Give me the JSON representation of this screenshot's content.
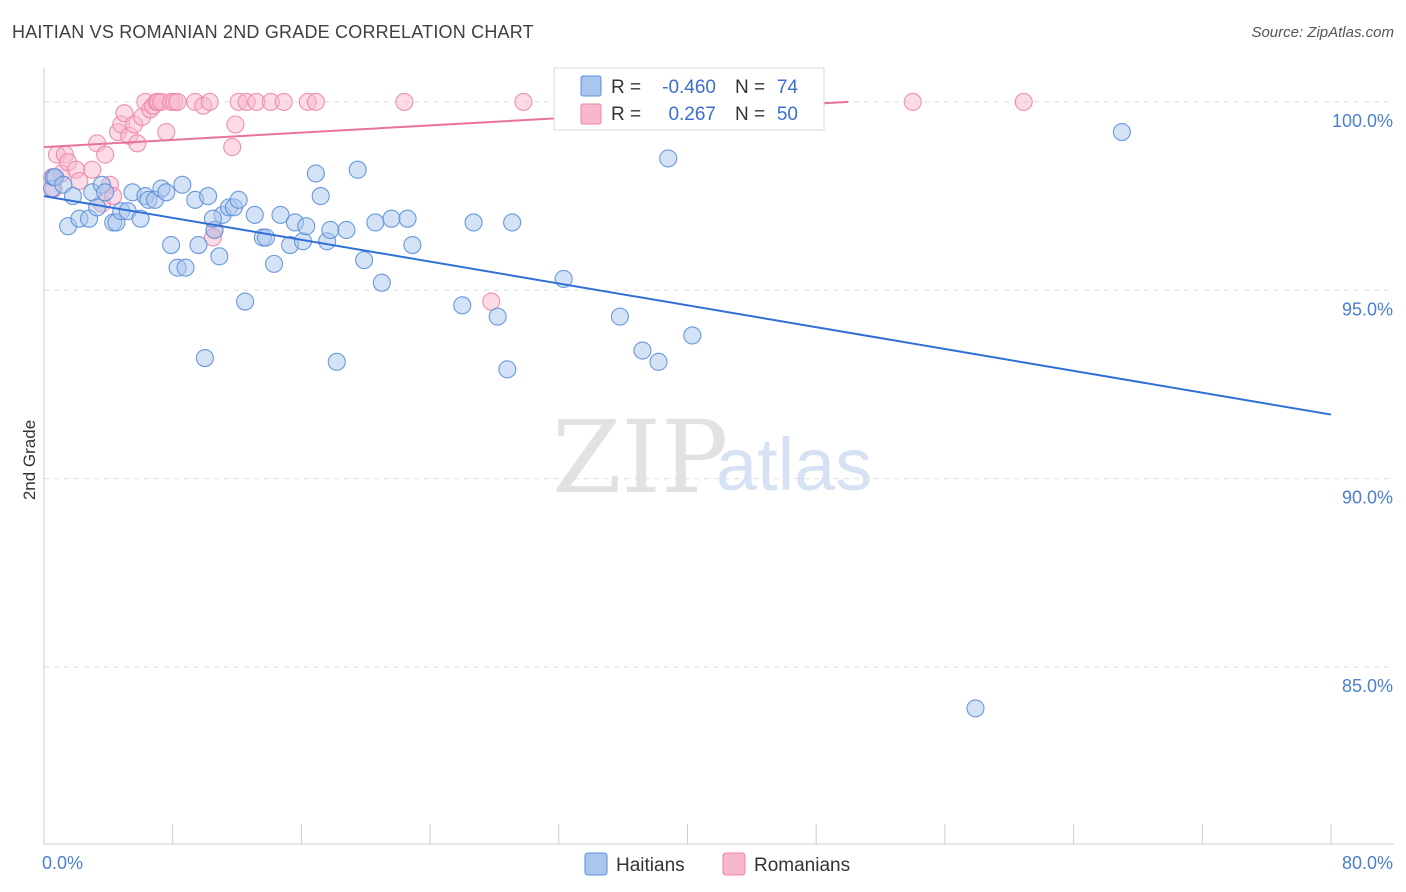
{
  "header": {
    "title": "HAITIAN VS ROMANIAN 2ND GRADE CORRELATION CHART",
    "source": "Source: ZipAtlas.com"
  },
  "watermark": {
    "zip": "ZIP",
    "atlas": "atlas"
  },
  "colors": {
    "haitians_fill": "#a9c6ee",
    "haitians_stroke": "#5b8fd8",
    "haitians_line": "#2f6fd6",
    "romanians_fill": "#f7b8cc",
    "romanians_stroke": "#ec86a6",
    "romanians_line": "#e8739a",
    "grid": "#dddddd",
    "tick_text": "#4a7fd0"
  },
  "legend": {
    "r_label": "R =",
    "n_label": "N =",
    "haitians": {
      "r": "-0.460",
      "n": "74"
    },
    "romanians": {
      "r": "0.267",
      "n": "50"
    }
  },
  "chart_data": {
    "type": "scatter",
    "title": "HAITIAN VS ROMANIAN 2ND GRADE CORRELATION CHART",
    "xlabel": "",
    "ylabel": "2nd Grade",
    "xlim": [
      0,
      80
    ],
    "ylim": [
      80.3,
      100.9
    ],
    "x_tick_labels": [
      "0.0%",
      "80.0%"
    ],
    "y_ticks": [
      85,
      90,
      95,
      100
    ],
    "y_tick_labels": [
      "85.0%",
      "90.0%",
      "95.0%",
      "100.0%"
    ],
    "grid": true,
    "series": [
      {
        "name": "Haitians",
        "r": -0.46,
        "n": 74,
        "trend": {
          "x": [
            0,
            80
          ],
          "y": [
            97.5,
            91.7
          ]
        },
        "points": [
          [
            0.5,
            97.7
          ],
          [
            0.6,
            98.0
          ],
          [
            0.7,
            98.0
          ],
          [
            1.2,
            97.8
          ],
          [
            1.5,
            96.7
          ],
          [
            1.8,
            97.5
          ],
          [
            2.2,
            96.9
          ],
          [
            2.8,
            96.9
          ],
          [
            3.0,
            97.6
          ],
          [
            3.3,
            97.2
          ],
          [
            3.6,
            97.8
          ],
          [
            3.8,
            97.6
          ],
          [
            4.3,
            96.8
          ],
          [
            4.5,
            96.8
          ],
          [
            4.8,
            97.1
          ],
          [
            5.2,
            97.1
          ],
          [
            5.5,
            97.6
          ],
          [
            6.0,
            96.9
          ],
          [
            6.3,
            97.5
          ],
          [
            6.5,
            97.4
          ],
          [
            6.9,
            97.4
          ],
          [
            7.3,
            97.7
          ],
          [
            7.6,
            97.6
          ],
          [
            7.9,
            96.2
          ],
          [
            8.3,
            95.6
          ],
          [
            8.8,
            95.6
          ],
          [
            8.6,
            97.8
          ],
          [
            9.4,
            97.4
          ],
          [
            9.6,
            96.2
          ],
          [
            10.2,
            97.5
          ],
          [
            10.6,
            96.6
          ],
          [
            10.9,
            95.9
          ],
          [
            11.1,
            97.0
          ],
          [
            11.5,
            97.2
          ],
          [
            11.8,
            97.2
          ],
          [
            12.1,
            97.4
          ],
          [
            12.5,
            94.7
          ],
          [
            13.1,
            97.0
          ],
          [
            13.6,
            96.4
          ],
          [
            13.8,
            96.4
          ],
          [
            14.3,
            95.7
          ],
          [
            14.7,
            97.0
          ],
          [
            15.3,
            96.2
          ],
          [
            15.6,
            96.8
          ],
          [
            16.1,
            96.3
          ],
          [
            16.3,
            96.7
          ],
          [
            16.9,
            98.1
          ],
          [
            17.2,
            97.5
          ],
          [
            17.6,
            96.3
          ],
          [
            17.8,
            96.6
          ],
          [
            18.2,
            93.1
          ],
          [
            18.8,
            96.6
          ],
          [
            19.5,
            98.2
          ],
          [
            19.9,
            95.8
          ],
          [
            20.6,
            96.8
          ],
          [
            21.0,
            95.2
          ],
          [
            21.6,
            96.9
          ],
          [
            22.6,
            96.9
          ],
          [
            22.9,
            96.2
          ],
          [
            26.0,
            94.6
          ],
          [
            26.7,
            96.8
          ],
          [
            28.2,
            94.3
          ],
          [
            28.8,
            92.9
          ],
          [
            29.1,
            96.8
          ],
          [
            32.3,
            95.3
          ],
          [
            35.8,
            94.3
          ],
          [
            37.2,
            93.4
          ],
          [
            38.2,
            93.1
          ],
          [
            38.8,
            98.5
          ],
          [
            40.3,
            93.8
          ],
          [
            57.9,
            83.9
          ],
          [
            67.0,
            99.2
          ],
          [
            10.0,
            93.2
          ],
          [
            10.5,
            96.9
          ]
        ]
      },
      {
        "name": "Romanians",
        "r": 0.267,
        "n": 50,
        "trend": {
          "x": [
            0,
            50
          ],
          "y": [
            98.8,
            100.0
          ]
        },
        "points": [
          [
            0.5,
            98.0
          ],
          [
            0.6,
            97.7
          ],
          [
            0.8,
            98.6
          ],
          [
            1.1,
            98.1
          ],
          [
            1.3,
            98.6
          ],
          [
            1.5,
            98.4
          ],
          [
            2.0,
            98.2
          ],
          [
            2.2,
            97.9
          ],
          [
            3.0,
            98.2
          ],
          [
            3.3,
            98.9
          ],
          [
            3.6,
            97.3
          ],
          [
            3.8,
            98.6
          ],
          [
            4.1,
            97.8
          ],
          [
            4.3,
            97.5
          ],
          [
            4.6,
            99.2
          ],
          [
            4.8,
            99.4
          ],
          [
            5.0,
            99.7
          ],
          [
            5.3,
            99.1
          ],
          [
            5.6,
            99.4
          ],
          [
            5.8,
            98.9
          ],
          [
            6.1,
            99.6
          ],
          [
            6.3,
            100.0
          ],
          [
            6.6,
            99.8
          ],
          [
            6.8,
            99.9
          ],
          [
            7.0,
            100.0
          ],
          [
            7.1,
            100.0
          ],
          [
            7.3,
            100.0
          ],
          [
            7.6,
            99.2
          ],
          [
            7.9,
            100.0
          ],
          [
            8.1,
            100.0
          ],
          [
            8.3,
            100.0
          ],
          [
            9.4,
            100.0
          ],
          [
            9.9,
            99.9
          ],
          [
            10.3,
            100.0
          ],
          [
            10.6,
            96.6
          ],
          [
            10.5,
            96.4
          ],
          [
            11.7,
            98.8
          ],
          [
            11.9,
            99.4
          ],
          [
            12.1,
            100.0
          ],
          [
            12.6,
            100.0
          ],
          [
            13.2,
            100.0
          ],
          [
            14.1,
            100.0
          ],
          [
            14.9,
            100.0
          ],
          [
            16.4,
            100.0
          ],
          [
            16.9,
            100.0
          ],
          [
            22.4,
            100.0
          ],
          [
            27.8,
            94.7
          ],
          [
            29.8,
            100.0
          ],
          [
            54.0,
            100.0
          ],
          [
            60.9,
            100.0
          ]
        ]
      }
    ]
  },
  "bottom_legend": {
    "haitians": "Haitians",
    "romanians": "Romanians"
  }
}
